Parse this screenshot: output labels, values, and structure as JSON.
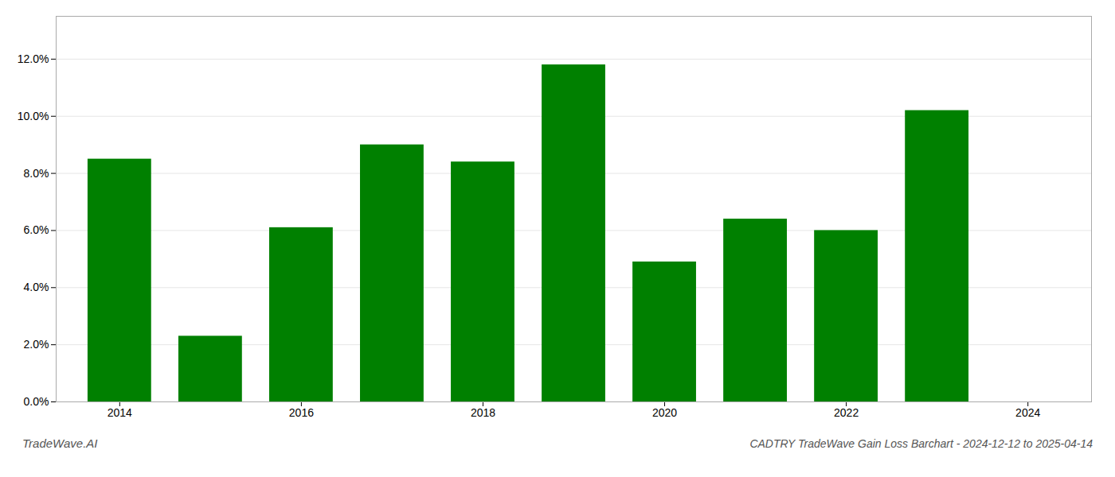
{
  "chart_data": {
    "type": "bar",
    "title": "CADTRY TradeWave Gain Loss Barchart - 2024-12-12 to 2025-04-14",
    "annotations": [
      "TradeWave.AI"
    ],
    "x": [
      2014,
      2015,
      2016,
      2017,
      2018,
      2019,
      2020,
      2021,
      2022,
      2023
    ],
    "values": [
      0.085,
      0.023,
      0.061,
      0.09,
      0.084,
      0.118,
      0.049,
      0.064,
      0.06,
      0.102
    ],
    "color": "#008000",
    "xlim": [
      2013.3,
      2024.7
    ],
    "xticks": [
      2014,
      2016,
      2018,
      2020,
      2022,
      2024
    ],
    "ylim": [
      0,
      0.135
    ],
    "yticks": [
      {
        "value": 0,
        "label": "0.0%"
      },
      {
        "value": 0.02,
        "label": "2.0%"
      },
      {
        "value": 0.04,
        "label": "4.0%"
      },
      {
        "value": 0.06,
        "label": "6.0%"
      },
      {
        "value": 0.08,
        "label": "8.0%"
      },
      {
        "value": 0.1,
        "label": "10.0%"
      },
      {
        "value": 0.12,
        "label": "12.0%"
      }
    ],
    "grid": true
  }
}
